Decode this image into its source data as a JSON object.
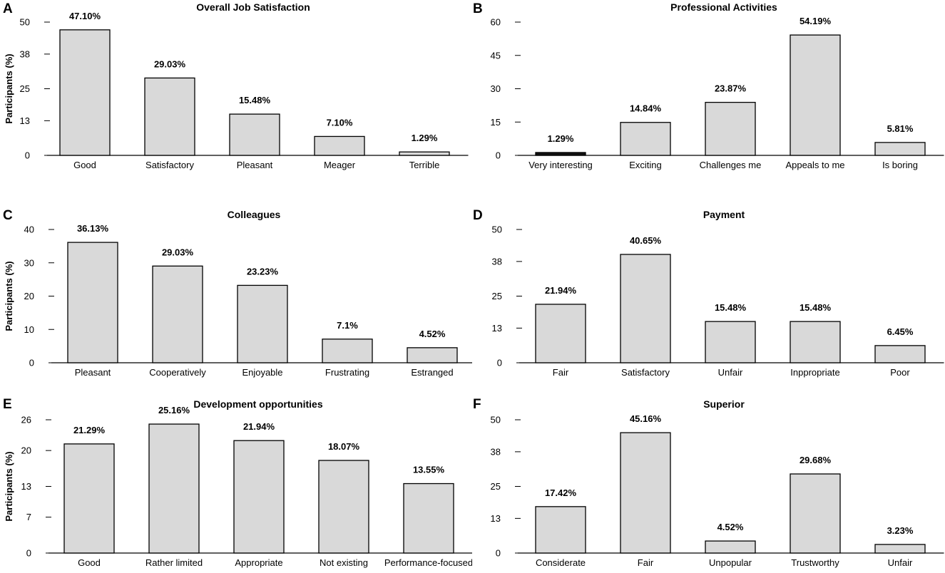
{
  "chart_data": [
    {
      "panel": "A",
      "type": "bar",
      "title": "Overall Job Satisfaction",
      "ylabel": "Participants (%)",
      "ylim": [
        0,
        50
      ],
      "yticks": [
        0,
        13,
        25,
        38,
        50
      ],
      "categories": [
        "Good",
        "Satisfactory",
        "Pleasant",
        "Meager",
        "Terrible"
      ],
      "values": [
        47.1,
        29.03,
        15.48,
        7.1,
        1.29
      ],
      "labels": [
        "47.10%",
        "29.03%",
        "15.48%",
        "7.10%",
        "1.29%"
      ]
    },
    {
      "panel": "B",
      "type": "bar",
      "title": "Professional Activities",
      "ylabel": "",
      "ylim": [
        0,
        60
      ],
      "yticks": [
        0,
        15,
        30,
        45,
        60
      ],
      "categories": [
        "Very interesting",
        "Exciting",
        "Challenges me",
        "Appeals to me",
        "Is boring"
      ],
      "values": [
        1.29,
        14.84,
        23.87,
        54.19,
        5.81
      ],
      "labels": [
        "1.29%",
        "14.84%",
        "23.87%",
        "54.19%",
        "5.81%"
      ],
      "dark_bar_index": 0
    },
    {
      "panel": "C",
      "type": "bar",
      "title": "Colleagues",
      "ylabel": "Participants (%)",
      "ylim": [
        0,
        40
      ],
      "yticks": [
        0,
        10,
        20,
        30,
        40
      ],
      "categories": [
        "Pleasant",
        "Cooperatively",
        "Enjoyable",
        "Frustrating",
        "Estranged"
      ],
      "values": [
        36.13,
        29.03,
        23.23,
        7.1,
        4.52
      ],
      "labels": [
        "36.13%",
        "29.03%",
        "23.23%",
        "7.1%",
        "4.52%"
      ]
    },
    {
      "panel": "D",
      "type": "bar",
      "title": "Payment",
      "ylabel": "",
      "ylim": [
        0,
        50
      ],
      "yticks": [
        0,
        13,
        25,
        38,
        50
      ],
      "categories": [
        "Fair",
        "Satisfactory",
        "Unfair",
        "Inppropriate",
        "Poor"
      ],
      "values": [
        21.94,
        40.65,
        15.48,
        15.48,
        6.45
      ],
      "labels": [
        "21.94%",
        "40.65%",
        "15.48%",
        "15.48%",
        "6.45%"
      ]
    },
    {
      "panel": "E",
      "type": "bar",
      "title": "Development opportunities",
      "ylabel": "Participants (%)",
      "ylim": [
        0,
        26
      ],
      "yticks": [
        0,
        7,
        13,
        20,
        26
      ],
      "categories": [
        "Good",
        "Rather limited",
        "Appropriate",
        "Not existing",
        "Performance-focused"
      ],
      "values": [
        21.29,
        25.16,
        21.94,
        18.07,
        13.55
      ],
      "labels": [
        "21.29%",
        "25.16%",
        "21.94%",
        "18.07%",
        "13.55%"
      ]
    },
    {
      "panel": "F",
      "type": "bar",
      "title": "Superior",
      "ylabel": "",
      "ylim": [
        0,
        50
      ],
      "yticks": [
        0,
        13,
        25,
        38,
        50
      ],
      "categories": [
        "Considerate",
        "Fair",
        "Unpopular",
        "Trustworthy",
        "Unfair"
      ],
      "values": [
        17.42,
        45.16,
        4.52,
        29.68,
        3.23
      ],
      "labels": [
        "17.42%",
        "45.16%",
        "4.52%",
        "29.68%",
        "3.23%"
      ]
    }
  ],
  "colors": {
    "bar_fill": "#d9d9d9",
    "bar_stroke": "#000000",
    "dark_bar": "#111111"
  }
}
